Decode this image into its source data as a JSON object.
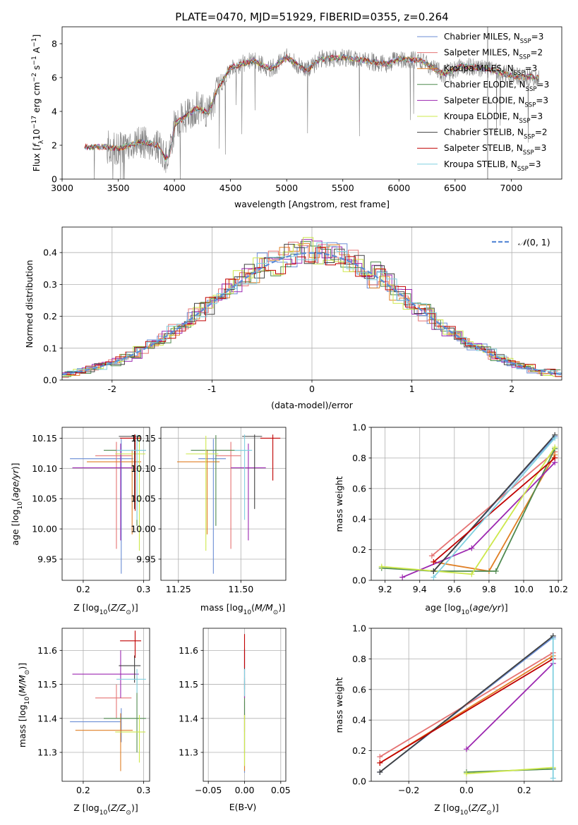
{
  "figure": {
    "title": "PLATE=0470, MJD=51929, FIBERID=0355, z=0.264"
  },
  "colors": {
    "spectrum": "#808080",
    "models": [
      "#6b8ed6",
      "#e57373",
      "#e07f25",
      "#4f8a4f",
      "#9c27b0",
      "#cde84b",
      "#404040",
      "#c00000",
      "#80d0e0"
    ],
    "grid": "#b0b0b0",
    "normal_curve": "#5b8bd6"
  },
  "legend_labels": [
    "Chabrier MILES, N",
    "Salpeter MILES, N",
    "Kroupa MILES, N",
    "Chabrier ELODIE, N",
    "Salpeter ELODIE, N",
    "Kroupa ELODIE, N",
    "Chabrier STELIB, N",
    "Salpeter STELIB, N",
    "Kroupa STELIB, N"
  ],
  "legend_nssp": [
    "=3",
    "=2",
    "=3",
    "=3",
    "=3",
    "=3",
    "=2",
    "=3",
    "=3"
  ],
  "legend_sub": "SSP",
  "chart_data": [
    {
      "id": "spectrum",
      "type": "line",
      "xlabel": "wavelength [Angstrom, rest frame]",
      "ylabel": "Flux [f_λ 10^-17 erg cm^-2 s^-1 A^-1]",
      "xlim": [
        3000,
        7450
      ],
      "ylim": [
        0,
        9
      ],
      "xticks": [
        3000,
        3500,
        4000,
        4500,
        5000,
        5500,
        6000,
        6500,
        7000
      ],
      "yticks": [
        0,
        2,
        4,
        6,
        8
      ],
      "data_range": [
        3200,
        7250
      ],
      "continuum": [
        [
          3200,
          1.9
        ],
        [
          3400,
          1.9
        ],
        [
          3500,
          1.8
        ],
        [
          3700,
          2.2
        ],
        [
          3850,
          2.0
        ],
        [
          3920,
          1.2
        ],
        [
          3960,
          1.5
        ],
        [
          4000,
          3.2
        ],
        [
          4100,
          3.7
        ],
        [
          4200,
          4.2
        ],
        [
          4300,
          3.9
        ],
        [
          4400,
          5.5
        ],
        [
          4500,
          6.6
        ],
        [
          4700,
          7.0
        ],
        [
          4860,
          6.5
        ],
        [
          5000,
          7.2
        ],
        [
          5170,
          6.4
        ],
        [
          5300,
          7.1
        ],
        [
          5500,
          7.2
        ],
        [
          5700,
          7.0
        ],
        [
          5890,
          6.8
        ],
        [
          6000,
          7.1
        ],
        [
          6200,
          7.0
        ],
        [
          6400,
          6.2
        ],
        [
          6563,
          6.7
        ],
        [
          6800,
          6.5
        ],
        [
          7000,
          6.1
        ],
        [
          7250,
          6.0
        ]
      ],
      "grid": false,
      "legend_position": "top-right"
    },
    {
      "id": "residuals",
      "type": "histogram",
      "xlabel": "(data-model)/error",
      "ylabel": "Normed distribution",
      "xlim": [
        -2.5,
        2.5
      ],
      "ylim": [
        0,
        0.48
      ],
      "xticks": [
        -2,
        -1,
        0,
        1,
        2
      ],
      "yticks": [
        0.0,
        0.1,
        0.2,
        0.3,
        0.4
      ],
      "bin_width": 0.1,
      "reference_label": "N(0,1)",
      "grid": true,
      "legend_position": "top-right"
    },
    {
      "id": "age-vs-z",
      "type": "errorbar",
      "xlabel": "Z [log10(Z/Z⊙)]",
      "ylabel": "age [log10(age/yr)]",
      "xlim": [
        0.165,
        0.31
      ],
      "ylim": [
        9.915,
        10.168
      ],
      "xticks": [
        0.2,
        0.3
      ],
      "yticks": [
        9.95,
        10.0,
        10.05,
        10.1,
        10.15
      ],
      "points": [
        {
          "x": 0.263,
          "y": 10.116,
          "xerr": [
            0.085,
            0.02
          ],
          "yerr": [
            0.19,
            0.033
          ]
        },
        {
          "x": 0.255,
          "y": 10.121,
          "xerr": [
            0.035,
            0.025
          ],
          "yerr": [
            0.154,
            0.023
          ]
        },
        {
          "x": 0.281,
          "y": 10.111,
          "xerr": [
            0.075,
            0.015
          ],
          "yerr": [
            0.12,
            0.02
          ]
        },
        {
          "x": 0.289,
          "y": 10.13,
          "xerr": [
            0.055,
            0.015
          ],
          "yerr": [
            0.125,
            0.025
          ]
        },
        {
          "x": 0.262,
          "y": 10.101,
          "xerr": [
            0.08,
            0.02
          ],
          "yerr": [
            0.12,
            0.04
          ]
        },
        {
          "x": 0.293,
          "y": 10.124,
          "xerr": [
            0.04,
            0.01
          ],
          "yerr": [
            0.16,
            0.03
          ]
        },
        {
          "x": 0.285,
          "y": 10.153,
          "xerr": [
            0.026,
            0.01
          ],
          "yerr": [
            0.12,
            0.003
          ]
        },
        {
          "x": 0.286,
          "y": 10.15,
          "xerr": [
            0.025,
            0.01
          ],
          "yerr": [
            0.12,
            0.006
          ]
        },
        {
          "x": 0.289,
          "y": 10.13,
          "xerr": [
            0.034,
            0.015
          ],
          "yerr": [
            0.115,
            0.026
          ]
        }
      ]
    },
    {
      "id": "age-vs-mass",
      "type": "errorbar",
      "xlabel": "mass [log10(M/M⊙)]",
      "ylabel": "",
      "xlim": [
        11.18,
        11.68
      ],
      "ylim": [
        9.915,
        10.168
      ],
      "xticks": [
        11.25,
        11.5
      ],
      "yticks": [
        9.95,
        10.0,
        10.05,
        10.1,
        10.15
      ],
      "points": [
        {
          "x": 11.39,
          "y": 10.116,
          "xerr": [
            0.06,
            0.05
          ],
          "yerr": [
            0.19,
            0.033
          ]
        },
        {
          "x": 11.46,
          "y": 10.121,
          "xerr": [
            0.06,
            0.04
          ],
          "yerr": [
            0.154,
            0.023
          ]
        },
        {
          "x": 11.365,
          "y": 10.111,
          "xerr": [
            0.12,
            0.05
          ],
          "yerr": [
            0.12,
            0.02
          ]
        },
        {
          "x": 11.4,
          "y": 10.13,
          "xerr": [
            0.1,
            0.12
          ],
          "yerr": [
            0.125,
            0.025
          ]
        },
        {
          "x": 11.53,
          "y": 10.101,
          "xerr": [
            0.07,
            0.07
          ],
          "yerr": [
            0.12,
            0.04
          ]
        },
        {
          "x": 11.36,
          "y": 10.124,
          "xerr": [
            0.08,
            0.05
          ],
          "yerr": [
            0.16,
            0.03
          ]
        },
        {
          "x": 11.555,
          "y": 10.153,
          "xerr": [
            0.05,
            0.03
          ],
          "yerr": [
            0.12,
            0.003
          ]
        },
        {
          "x": 11.628,
          "y": 10.15,
          "xerr": [
            0.05,
            0.03
          ],
          "yerr": [
            0.07,
            0.006
          ]
        },
        {
          "x": 11.515,
          "y": 10.13,
          "xerr": [
            0.04,
            0.03
          ],
          "yerr": [
            0.115,
            0.026
          ]
        }
      ]
    },
    {
      "id": "weight-vs-age",
      "type": "line",
      "xlabel": "age [log10(age/yr)]",
      "ylabel": "mass weight",
      "xlim": [
        9.12,
        10.22
      ],
      "ylim": [
        0,
        1
      ],
      "xticks": [
        9.2,
        9.4,
        9.6,
        9.8,
        10.0,
        10.2
      ],
      "yticks": [
        0.0,
        0.2,
        0.4,
        0.6,
        0.8,
        1.0
      ],
      "grid": true,
      "series": [
        {
          "x": [
            9.48,
            10.18
          ],
          "y": [
            0.06,
            0.94
          ]
        },
        {
          "x": [
            9.47,
            10.18
          ],
          "y": [
            0.16,
            0.84
          ]
        },
        {
          "x": [
            9.48,
            9.8,
            10.18
          ],
          "y": [
            0.12,
            0.06,
            0.82
          ]
        },
        {
          "x": [
            9.18,
            9.48,
            9.84,
            10.18
          ],
          "y": [
            0.08,
            0.06,
            0.06,
            0.86
          ]
        },
        {
          "x": [
            9.3,
            9.7,
            10.18
          ],
          "y": [
            0.02,
            0.21,
            0.77
          ]
        },
        {
          "x": [
            9.18,
            9.7,
            10.18
          ],
          "y": [
            0.09,
            0.04,
            0.87
          ]
        },
        {
          "x": [
            9.48,
            10.18
          ],
          "y": [
            0.06,
            0.95
          ]
        },
        {
          "x": [
            9.48,
            10.18
          ],
          "y": [
            0.12,
            0.8
          ]
        },
        {
          "x": [
            9.48,
            10.18
          ],
          "y": [
            0.02,
            0.93
          ]
        }
      ]
    },
    {
      "id": "mass-vs-z",
      "type": "errorbar",
      "xlabel": "Z [log10(Z/Z⊙)]",
      "ylabel": "mass [log10(M/M⊙)]",
      "xlim": [
        0.165,
        0.31
      ],
      "ylim": [
        11.215,
        11.665
      ],
      "xticks": [
        0.2,
        0.3
      ],
      "yticks": [
        11.3,
        11.4,
        11.5,
        11.6
      ],
      "points": [
        {
          "x": 0.263,
          "y": 11.39,
          "xerr": [
            0.085,
            0.0
          ],
          "yerr": [
            0.06,
            0.04
          ]
        },
        {
          "x": 0.255,
          "y": 11.46,
          "xerr": [
            0.035,
            0.025
          ],
          "yerr": [
            0.06,
            0.04
          ]
        },
        {
          "x": 0.262,
          "y": 11.365,
          "xerr": [
            0.075,
            0.02
          ],
          "yerr": [
            0.12,
            0.05
          ]
        },
        {
          "x": 0.289,
          "y": 11.4,
          "xerr": [
            0.055,
            0.015
          ],
          "yerr": [
            0.1,
            0.12
          ]
        },
        {
          "x": 0.262,
          "y": 11.53,
          "xerr": [
            0.08,
            0.03
          ],
          "yerr": [
            0.07,
            0.07
          ]
        },
        {
          "x": 0.293,
          "y": 11.36,
          "xerr": [
            0.04,
            0.01
          ],
          "yerr": [
            0.09,
            0.05
          ]
        },
        {
          "x": 0.285,
          "y": 11.555,
          "xerr": [
            0.026,
            0.01
          ],
          "yerr": [
            0.05,
            0.03
          ]
        },
        {
          "x": 0.286,
          "y": 11.628,
          "xerr": [
            0.025,
            0.01
          ],
          "yerr": [
            0.05,
            0.03
          ]
        },
        {
          "x": 0.289,
          "y": 11.515,
          "xerr": [
            0.034,
            0.015
          ],
          "yerr": [
            0.04,
            0.03
          ]
        }
      ]
    },
    {
      "id": "mass-vs-ebv",
      "type": "errorbar",
      "xlabel": "E(B-V)",
      "ylabel": "",
      "xlim": [
        -0.057,
        0.057
      ],
      "ylim": [
        11.215,
        11.665
      ],
      "xticks": [
        -0.05,
        0.0,
        0.05
      ],
      "yticks": [
        11.3,
        11.4,
        11.5,
        11.6
      ],
      "points": [
        {
          "x": 0,
          "y": 11.39,
          "xerr": [
            0,
            0
          ],
          "yerr": [
            0.15,
            0.06
          ]
        },
        {
          "x": 0,
          "y": 11.46,
          "xerr": [
            0,
            0
          ],
          "yerr": [
            0.1,
            0.05
          ]
        },
        {
          "x": 0,
          "y": 11.365,
          "xerr": [
            0,
            0
          ],
          "yerr": [
            0.12,
            0.05
          ]
        },
        {
          "x": 0,
          "y": 11.4,
          "xerr": [
            0,
            0
          ],
          "yerr": [
            0.1,
            0.12
          ]
        },
        {
          "x": 0,
          "y": 11.53,
          "xerr": [
            0,
            0
          ],
          "yerr": [
            0.07,
            0.07
          ]
        },
        {
          "x": 0,
          "y": 11.36,
          "xerr": [
            0,
            0
          ],
          "yerr": [
            0.1,
            0.05
          ]
        },
        {
          "x": 0,
          "y": 11.555,
          "xerr": [
            0,
            0
          ],
          "yerr": [
            0.07,
            0.05
          ]
        },
        {
          "x": 0,
          "y": 11.628,
          "xerr": [
            0,
            0
          ],
          "yerr": [
            0.08,
            0.02
          ]
        },
        {
          "x": 0,
          "y": 11.515,
          "xerr": [
            0,
            0
          ],
          "yerr": [
            0.05,
            0.03
          ]
        }
      ]
    },
    {
      "id": "weight-vs-z",
      "type": "line",
      "xlabel": "Z [log10(Z/Z⊙)]",
      "ylabel": "mass weight",
      "xlim": [
        -0.33,
        0.33
      ],
      "ylim": [
        0,
        1
      ],
      "xticks": [
        -0.2,
        0.0,
        0.2
      ],
      "yticks": [
        0.0,
        0.2,
        0.4,
        0.6,
        0.8,
        1.0
      ],
      "grid": true,
      "series": [
        {
          "x": [
            -0.3,
            0.3
          ],
          "y": [
            0.06,
            0.94
          ]
        },
        {
          "x": [
            -0.3,
            0.3
          ],
          "y": [
            0.16,
            0.84
          ]
        },
        {
          "x": [
            -0.3,
            0.3
          ],
          "y": [
            0.12,
            0.82
          ]
        },
        {
          "x": [
            0.0,
            0.3
          ],
          "y": [
            0.06,
            0.08
          ]
        },
        {
          "x": [
            0.0,
            0.3
          ],
          "y": [
            0.21,
            0.77
          ]
        },
        {
          "x": [
            0.0,
            0.3
          ],
          "y": [
            0.05,
            0.09
          ]
        },
        {
          "x": [
            -0.3,
            0.3
          ],
          "y": [
            0.06,
            0.95
          ]
        },
        {
          "x": [
            -0.3,
            0.3
          ],
          "y": [
            0.12,
            0.8
          ]
        },
        {
          "x": [
            0.3,
            0.3
          ],
          "y": [
            0.02,
            0.93
          ]
        }
      ]
    }
  ]
}
